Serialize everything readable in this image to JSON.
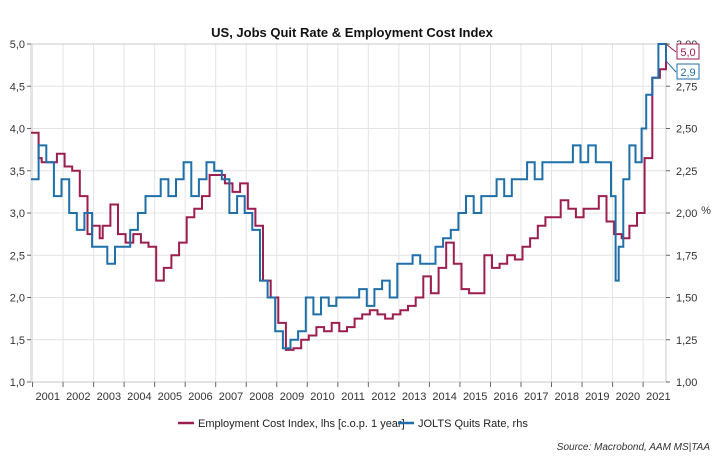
{
  "chart_data": {
    "type": "line",
    "title": "US, Jobs Quit Rate & Employment Cost Index",
    "source": "Source: Macrobond, AAM MS|TAA",
    "left_axis": {
      "ticks": [
        "1,0",
        "1,5",
        "2,0",
        "2,5",
        "3,0",
        "3,5",
        "4,0",
        "4,5",
        "5,0"
      ],
      "min": 1.0,
      "max": 5.0
    },
    "right_axis": {
      "label": "%",
      "ticks": [
        "1,00",
        "1,25",
        "1,50",
        "1,75",
        "2,00",
        "2,25",
        "2,50",
        "2,75",
        "3,00"
      ],
      "min": 1.0,
      "max": 3.0
    },
    "x_axis": {
      "min": 2000.95,
      "max": 2021.75,
      "ticks": [
        "2001",
        "2002",
        "2003",
        "2004",
        "2005",
        "2006",
        "2007",
        "2008",
        "2009",
        "2010",
        "2011",
        "2012",
        "2013",
        "2014",
        "2015",
        "2016",
        "2017",
        "2018",
        "2019",
        "2020",
        "2021"
      ]
    },
    "grid": true,
    "legend_position": "bottom",
    "series": [
      {
        "name": "Employment Cost Index, lhs [c.o.p. 1 year]",
        "axis": "left",
        "color": "#9c1d4f",
        "end_label": "5,0",
        "x": [
          2000.95,
          2001.2,
          2001.3,
          2001.55,
          2001.8,
          2002.05,
          2002.3,
          2002.55,
          2002.8,
          2002.95,
          2003.2,
          2003.3,
          2003.55,
          2003.8,
          2004.05,
          2004.3,
          2004.55,
          2004.8,
          2005.05,
          2005.3,
          2005.55,
          2005.8,
          2006.05,
          2006.3,
          2006.55,
          2006.8,
          2007.05,
          2007.3,
          2007.55,
          2007.8,
          2008.05,
          2008.3,
          2008.55,
          2008.8,
          2009.05,
          2009.3,
          2009.55,
          2009.8,
          2010.05,
          2010.3,
          2010.55,
          2010.8,
          2011.05,
          2011.3,
          2011.55,
          2011.8,
          2012.05,
          2012.3,
          2012.55,
          2012.8,
          2013.05,
          2013.3,
          2013.55,
          2013.8,
          2014.05,
          2014.3,
          2014.55,
          2014.8,
          2015.05,
          2015.3,
          2015.55,
          2015.8,
          2016.05,
          2016.3,
          2016.55,
          2016.8,
          2017.05,
          2017.3,
          2017.55,
          2017.8,
          2018.05,
          2018.3,
          2018.55,
          2018.8,
          2019.05,
          2019.3,
          2019.55,
          2019.8,
          2020.05,
          2020.3,
          2020.55,
          2020.8,
          2021.05,
          2021.3,
          2021.55,
          2021.75
        ],
        "y": [
          3.95,
          3.65,
          3.6,
          3.6,
          3.7,
          3.55,
          3.5,
          3.2,
          2.75,
          2.85,
          2.7,
          2.85,
          3.1,
          2.75,
          2.65,
          2.75,
          2.65,
          2.6,
          2.2,
          2.35,
          2.5,
          2.65,
          2.95,
          3.05,
          3.2,
          3.45,
          3.45,
          3.35,
          3.25,
          3.35,
          3.05,
          2.85,
          2.2,
          2.0,
          1.7,
          1.38,
          1.4,
          1.5,
          1.55,
          1.65,
          1.6,
          1.7,
          1.6,
          1.65,
          1.75,
          1.8,
          1.85,
          1.8,
          1.75,
          1.8,
          1.85,
          1.9,
          2.0,
          2.25,
          2.05,
          2.35,
          2.65,
          2.4,
          2.1,
          2.05,
          2.05,
          2.5,
          2.35,
          2.4,
          2.5,
          2.45,
          2.6,
          2.7,
          2.85,
          2.95,
          2.95,
          3.15,
          3.05,
          2.95,
          3.05,
          3.05,
          3.2,
          2.9,
          2.75,
          2.7,
          2.85,
          3.0,
          3.65,
          4.6,
          4.7,
          5.0
        ]
      },
      {
        "name": "JOLTS Quits Rate, rhs",
        "axis": "right",
        "color": "#1f6fa8",
        "end_label": "2,9",
        "x": [
          2000.95,
          2001.2,
          2001.45,
          2001.7,
          2001.95,
          2002.2,
          2002.45,
          2002.7,
          2002.95,
          2003.2,
          2003.45,
          2003.7,
          2003.95,
          2004.2,
          2004.45,
          2004.7,
          2004.95,
          2005.2,
          2005.45,
          2005.7,
          2005.95,
          2006.2,
          2006.45,
          2006.7,
          2006.95,
          2007.2,
          2007.45,
          2007.7,
          2007.95,
          2008.2,
          2008.45,
          2008.7,
          2008.95,
          2009.2,
          2009.45,
          2009.7,
          2009.95,
          2010.2,
          2010.45,
          2010.7,
          2010.95,
          2011.2,
          2011.45,
          2011.7,
          2011.95,
          2012.2,
          2012.45,
          2012.7,
          2012.95,
          2013.2,
          2013.45,
          2013.7,
          2013.95,
          2014.2,
          2014.45,
          2014.7,
          2014.95,
          2015.2,
          2015.45,
          2015.7,
          2015.95,
          2016.2,
          2016.45,
          2016.7,
          2016.95,
          2017.2,
          2017.45,
          2017.7,
          2017.95,
          2018.2,
          2018.45,
          2018.7,
          2018.95,
          2019.2,
          2019.45,
          2019.7,
          2019.95,
          2020.1,
          2020.2,
          2020.35,
          2020.55,
          2020.75,
          2020.95,
          2021.1,
          2021.3,
          2021.5,
          2021.75
        ],
        "y": [
          2.2,
          2.4,
          2.3,
          2.1,
          2.2,
          2.0,
          1.9,
          2.0,
          1.8,
          1.8,
          1.7,
          1.8,
          1.8,
          1.9,
          2.0,
          2.1,
          2.1,
          2.2,
          2.1,
          2.2,
          2.3,
          2.1,
          2.2,
          2.3,
          2.25,
          2.2,
          2.0,
          2.1,
          2.0,
          1.9,
          1.6,
          1.5,
          1.3,
          1.2,
          1.25,
          1.3,
          1.5,
          1.4,
          1.5,
          1.45,
          1.5,
          1.5,
          1.5,
          1.55,
          1.45,
          1.55,
          1.6,
          1.5,
          1.7,
          1.7,
          1.75,
          1.7,
          1.7,
          1.8,
          1.85,
          1.9,
          2.0,
          2.1,
          2.0,
          2.1,
          2.1,
          2.2,
          2.1,
          2.2,
          2.2,
          2.3,
          2.2,
          2.3,
          2.3,
          2.3,
          2.3,
          2.4,
          2.3,
          2.4,
          2.3,
          2.3,
          2.1,
          1.6,
          1.8,
          2.2,
          2.4,
          2.3,
          2.5,
          2.7,
          2.8,
          3.0,
          2.9
        ]
      }
    ]
  }
}
